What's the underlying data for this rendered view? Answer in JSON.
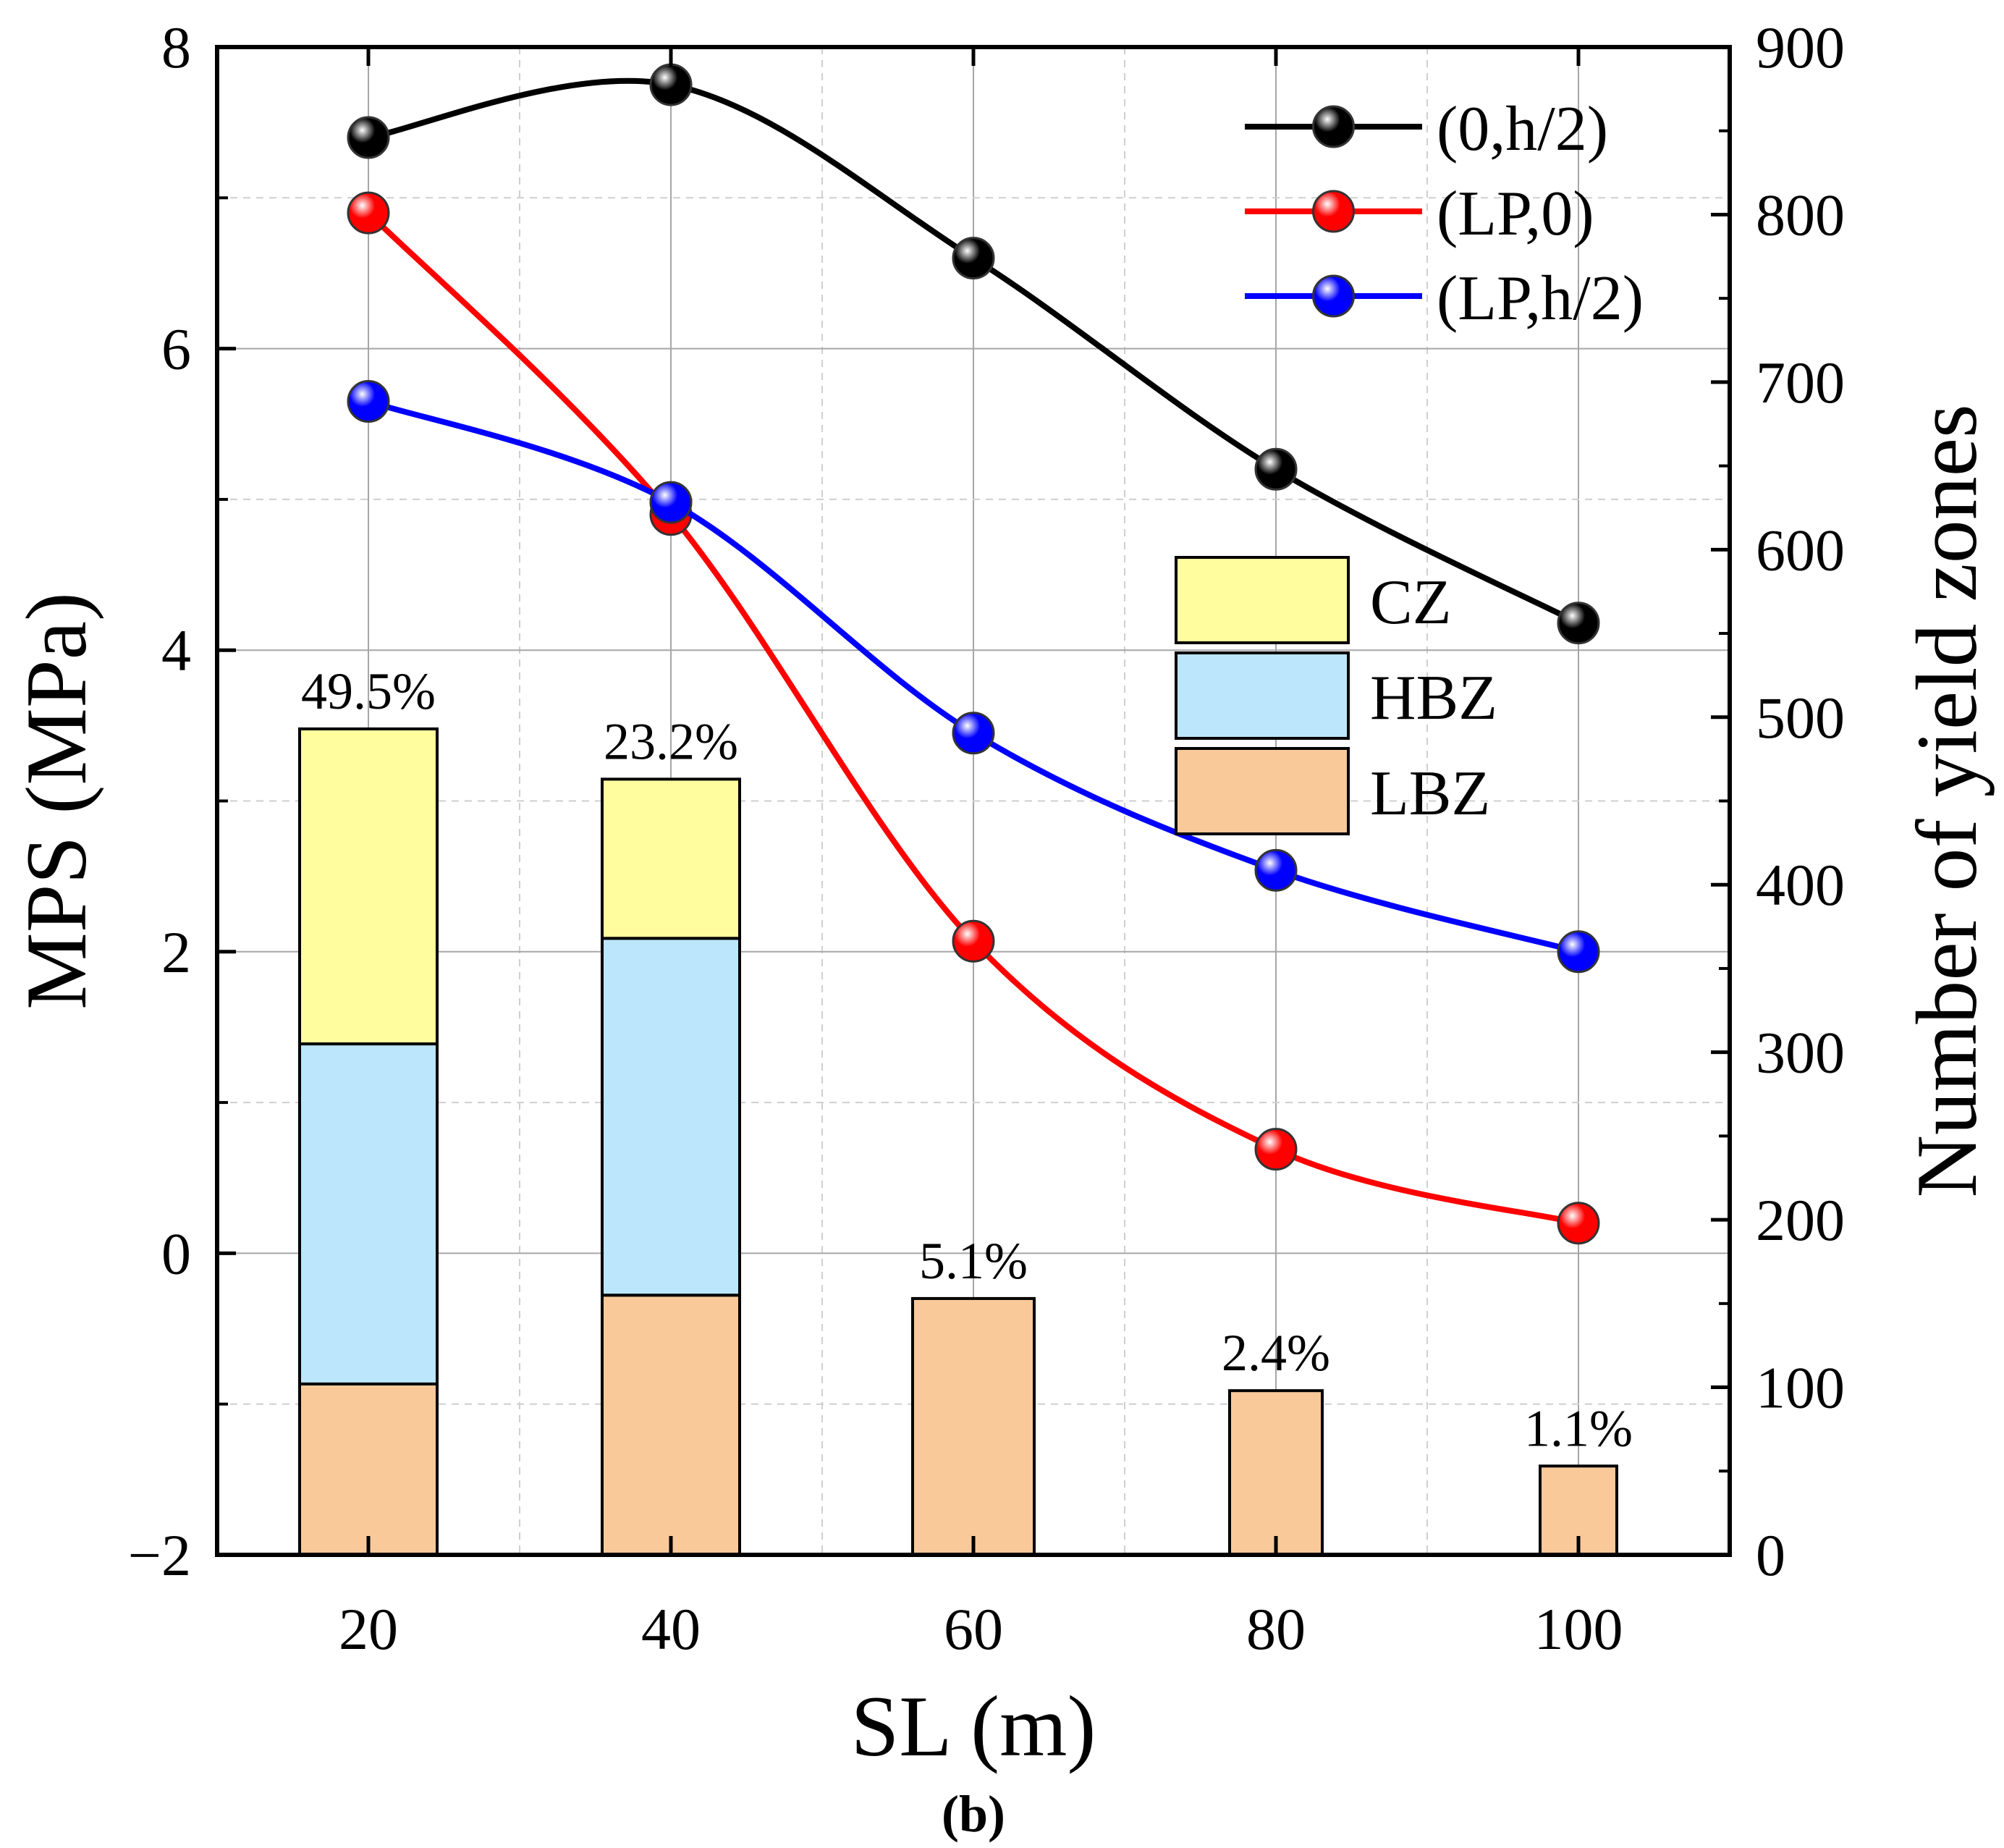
{
  "chart_data": {
    "type": "bar+line",
    "panel_label": "(b)",
    "xlabel": "SL (m)",
    "ylabel_left": "MPS (MPa)",
    "ylabel_right": "Number of yield zones",
    "x": [
      20,
      40,
      60,
      80,
      100
    ],
    "x_tick_labels": [
      "20",
      "40",
      "60",
      "80",
      "100"
    ],
    "xlim": [
      10,
      110
    ],
    "ylim_left": [
      -2,
      8
    ],
    "y_left_ticks": [
      -2,
      0,
      2,
      4,
      6,
      8
    ],
    "y_left_tick_labels": [
      "−2",
      "0",
      "2",
      "4",
      "6",
      "8"
    ],
    "ylim_right": [
      0,
      900
    ],
    "y_right_ticks": [
      0,
      100,
      200,
      300,
      400,
      500,
      600,
      700,
      800,
      900
    ],
    "y_right_tick_labels": [
      "0",
      "100",
      "200",
      "300",
      "400",
      "500",
      "600",
      "700",
      "800",
      "900"
    ],
    "grid": true,
    "line_series": [
      {
        "name": "(0,h/2)",
        "color": "#000000",
        "values": [
          7.4,
          7.75,
          6.6,
          5.2,
          4.18
        ]
      },
      {
        "name": "(LP,0)",
        "color": "#ff0000",
        "values": [
          6.9,
          4.9,
          2.07,
          0.69,
          0.2
        ]
      },
      {
        "name": "(LP,h/2)",
        "color": "#0000ff",
        "values": [
          5.65,
          4.98,
          3.45,
          2.54,
          2.0
        ]
      }
    ],
    "bar_series": [
      {
        "name": "LBZ",
        "color": "#f9c99a",
        "values": [
          102,
          155,
          153,
          98,
          53
        ]
      },
      {
        "name": "HBZ",
        "color": "#bce6fc",
        "values": [
          203,
          213,
          0,
          0,
          0
        ]
      },
      {
        "name": "CZ",
        "color": "#fffd9e",
        "values": [
          188,
          95,
          0,
          0,
          0
        ]
      }
    ],
    "bar_labels": [
      "49.5%",
      "23.2%",
      "5.1%",
      "2.4%",
      "1.1%"
    ],
    "bar_legend_order": [
      "CZ",
      "HBZ",
      "LBZ"
    ],
    "line_legend_position": "top-right",
    "bar_legend_position": "center-right"
  }
}
